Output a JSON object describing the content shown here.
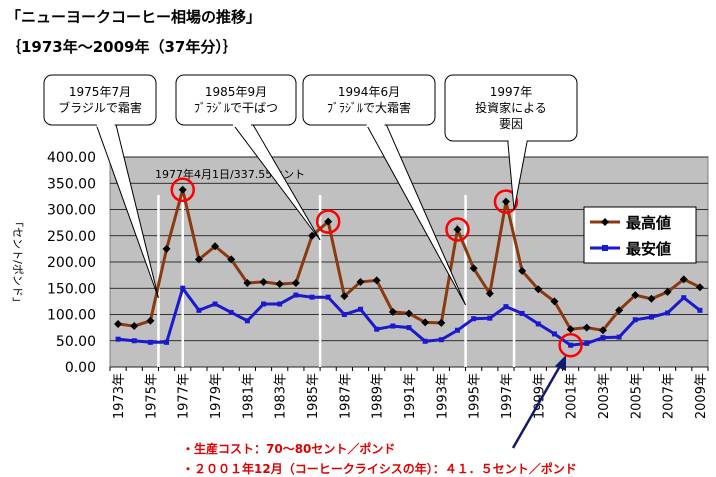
{
  "page": {
    "title": "「ニューヨークコーヒー相場の推移」",
    "subtitle": "｛1973年～2009年（37年分）｝",
    "notes": [
      "・生産コスト：70～80セント／ポンド",
      "・２００１年12月（コーヒークライシスの年）：４１．５セント／ポンド"
    ]
  },
  "chart_data": {
    "type": "line",
    "title": "",
    "xlabel": "",
    "ylabel": "「セント/ポンド」",
    "ylim": [
      0,
      400
    ],
    "yticks": [
      "0.00",
      "50.00",
      "100.00",
      "150.00",
      "200.00",
      "250.00",
      "300.00",
      "350.00",
      "400.00"
    ],
    "x": [
      1973,
      1974,
      1975,
      1976,
      1977,
      1978,
      1979,
      1980,
      1981,
      1982,
      1983,
      1984,
      1985,
      1986,
      1987,
      1988,
      1989,
      1990,
      1991,
      1992,
      1993,
      1994,
      1995,
      1996,
      1997,
      1998,
      1999,
      2000,
      2001,
      2002,
      2003,
      2004,
      2005,
      2006,
      2007,
      2008,
      2009
    ],
    "xtick_labels": [
      "1973年",
      "1975年",
      "1977年",
      "1979年",
      "1981年",
      "1983年",
      "1985年",
      "1987年",
      "1989年",
      "1991年",
      "1993年",
      "1995年",
      "1997年",
      "1999年",
      "2001年",
      "2003年",
      "2005年",
      "2007年",
      "2009年"
    ],
    "series": [
      {
        "name": "最高値",
        "color": "#8B3A0F",
        "marker": "diamond",
        "values": [
          82,
          78,
          88,
          225,
          337.55,
          205,
          230,
          205,
          160,
          162,
          158,
          160,
          250,
          277,
          135,
          162,
          165,
          105,
          102,
          85,
          84,
          262,
          188,
          140,
          315,
          183,
          148,
          125,
          72,
          75,
          70,
          108,
          137,
          130,
          143,
          167,
          152
        ]
      },
      {
        "name": "最安値",
        "color": "#1a1acc",
        "marker": "square",
        "values": [
          53,
          50,
          47,
          47,
          150,
          108,
          120,
          104,
          88,
          120,
          120,
          137,
          133,
          133,
          100,
          110,
          72,
          78,
          75,
          49,
          52,
          70,
          92,
          93,
          115,
          102,
          82,
          63,
          41.5,
          45,
          56,
          57,
          90,
          95,
          103,
          132,
          108
        ]
      }
    ],
    "legend_position": "right",
    "grid": true,
    "background": "#c0c0c0",
    "peak_label": "1977年4月1日/337.55セント",
    "callouts": [
      {
        "lines": [
          "1975年7月",
          "ブラジルで霜害"
        ]
      },
      {
        "lines": [
          "1985年9月",
          "ﾌﾞﾗｼﾞﾙで干ばつ"
        ]
      },
      {
        "lines": [
          "1994年6月",
          "ﾌﾞﾗｼﾞﾙで大霜害"
        ]
      },
      {
        "lines": [
          "1997年",
          "投資家による",
          "要因"
        ]
      }
    ]
  }
}
